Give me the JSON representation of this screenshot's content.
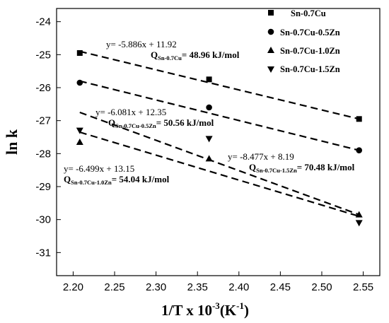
{
  "chart_data": {
    "type": "scatter",
    "xlabel": "1/T x 10",
    "xlabel_exp": "-3",
    "xlabel_unit_open": "(K",
    "xlabel_unit_exp": "-1",
    "xlabel_unit_close": ")",
    "ylabel": "ln k",
    "xlim": [
      2.18,
      2.57
    ],
    "ylim": [
      -31.7,
      -23.6
    ],
    "xticks": [
      "2.20",
      "2.25",
      "2.30",
      "2.35",
      "2.40",
      "2.45",
      "2.50",
      "2.55"
    ],
    "yticks": [
      "-24",
      "-25",
      "-26",
      "-27",
      "-28",
      "-29",
      "-30",
      "-31"
    ],
    "legend_position": "top-right",
    "series": [
      {
        "name": "Sn-0.7Cu",
        "marker": "square",
        "x": [
          2.208,
          2.364,
          2.545
        ],
        "y": [
          -24.95,
          -25.75,
          -26.95
        ],
        "fit": {
          "slope": -5.886,
          "intercept": 11.92,
          "x0": 2.208,
          "x1": 2.545
        },
        "equation": "y= -5.886x + 11.92",
        "q_prefix": "Q",
        "q_sub": "Sn-0.7Cu",
        "q_value": "= 48.96 kJ/mol"
      },
      {
        "name": "Sn-0.7Cu-0.5Zn",
        "marker": "circle",
        "x": [
          2.208,
          2.364,
          2.545
        ],
        "y": [
          -25.85,
          -26.6,
          -27.9
        ],
        "fit": {
          "slope": -6.081,
          "intercept": 12.35,
          "x0": 2.208,
          "x1": 2.545
        },
        "equation": "y= -6.081x + 12.35",
        "q_prefix": "Q",
        "q_sub": "Sn-0.7Cu-0.5Zn",
        "q_value": "= 50.56 kJ/mol"
      },
      {
        "name": "Sn-0.7Cu-1.0Zn",
        "marker": "triangle-up",
        "x": [
          2.208,
          2.364,
          2.545
        ],
        "y": [
          -27.65,
          -28.15,
          -29.85
        ],
        "fit": {
          "slope": -6.499,
          "intercept": 13.15,
          "x0": 2.208,
          "x1": 2.545
        },
        "equation": "y= -6.499x + 13.15",
        "q_prefix": "Q",
        "q_sub": "Sn-0.7Cu-1.0Zn",
        "q_value": "= 54.04 kJ/mol"
      },
      {
        "name": "Sn-0.7Cu-1.5Zn",
        "marker": "triangle-down",
        "x": [
          2.208,
          2.364,
          2.545
        ],
        "y": [
          -27.3,
          -27.55,
          -30.1
        ],
        "fit": {
          "slope": -8.477,
          "intercept": 8.19,
          "x0": 2.208,
          "x1": 2.545
        },
        "equation": "y= -8.477x + 8.19",
        "q_prefix": "Q",
        "q_sub": "Sn-0.7Cu-1.5Zn",
        "q_value": "= 70.48 kJ/mol"
      }
    ]
  }
}
